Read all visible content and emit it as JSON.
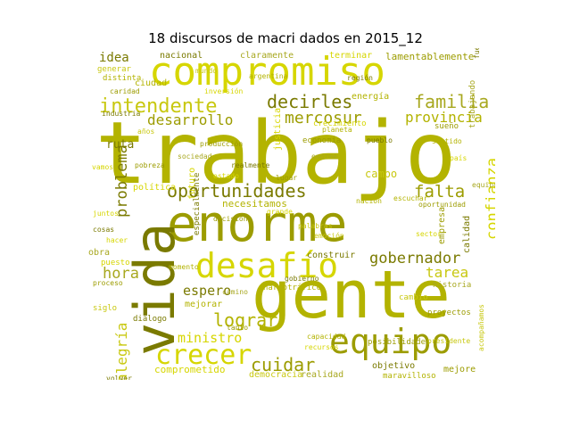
{
  "title": "18 discursos de macri dados en 2015_12",
  "palette": [
    "#b3b300",
    "#9c9c00",
    "#d6d600",
    "#7a7a00",
    "#c8c810",
    "#a8a820"
  ],
  "words": [
    "trabajo",
    "gente",
    "enorme",
    "compromiso",
    "vida",
    "equipo",
    "desafío",
    "crecer",
    "oportunidades",
    "intendente",
    "familia",
    "decirles",
    "mercosur",
    "provincia",
    "gobernador",
    "cuidar",
    "lograr",
    "ministro",
    "espero",
    "hora",
    "falta",
    "confianza",
    "problema",
    "alegría",
    "tarea",
    "desarrollo",
    "idea",
    "ciudad",
    "nacional",
    "claramente",
    "terminar",
    "lamentablemente",
    "ruta",
    "comprometido",
    "democracia",
    "realidad",
    "objetivo",
    "mejore",
    "sueño",
    "energía",
    "justicia",
    "futuro",
    "campo",
    "necesitamos",
    "calidad",
    "empresa",
    "obra",
    "puesto",
    "mejorar",
    "construir",
    "proyectos",
    "maravilloso",
    "narcotráfico",
    "cambio",
    "pobreza",
    "política",
    "especialmente",
    "generar",
    "distinta",
    "caridad",
    "inversión",
    "industria",
    "crecimiento",
    "economía",
    "historia",
    "palabras",
    "fuerza",
    "trabajando",
    "producción",
    "planeta",
    "sector",
    "emoción",
    "volver",
    "capacidad",
    "posibilidades",
    "recursos",
    "acompañamos",
    "sociedad",
    "realmente",
    "escuchar",
    "oportunidad",
    "estado",
    "diálogo",
    "siglo",
    "tanto",
    "vamos",
    "enorme",
    "sentido",
    "cosas",
    "proceso",
    "país",
    "mundo",
    "argentina",
    "región",
    "equipo",
    "lugar",
    "grande",
    "presidente",
    "nación",
    "pueblo",
    "camino",
    "decisión",
    "hacer",
    "años",
    "momento",
    "gobierno",
    "juntos"
  ]
}
